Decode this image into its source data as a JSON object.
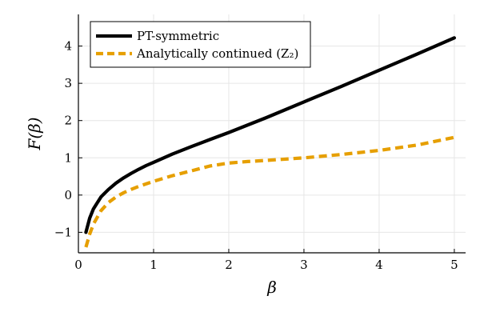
{
  "chart_data": {
    "type": "line",
    "xlabel": "β",
    "ylabel": "F(β)",
    "xlim": [
      0,
      5.15
    ],
    "ylim": [
      -1.55,
      4.85
    ],
    "xticks": [
      0,
      1,
      2,
      3,
      4,
      5
    ],
    "yticks": [
      -1,
      0,
      1,
      2,
      3,
      4
    ],
    "xtick_labels": [
      "0",
      "1",
      "2",
      "3",
      "4",
      "5"
    ],
    "ytick_labels": [
      "−1",
      "0",
      "1",
      "2",
      "3",
      "4"
    ],
    "grid": true,
    "legend_position": "top-left",
    "series": [
      {
        "name": "PT-symmetric",
        "color": "#000000",
        "style": "solid",
        "x": [
          0.1,
          0.15,
          0.2,
          0.3,
          0.4,
          0.5,
          0.6,
          0.7,
          0.8,
          0.9,
          1.0,
          1.25,
          1.5,
          1.75,
          2.0,
          2.5,
          3.0,
          3.5,
          4.0,
          4.5,
          5.0
        ],
        "y": [
          -1.0,
          -0.62,
          -0.37,
          -0.05,
          0.15,
          0.32,
          0.46,
          0.58,
          0.69,
          0.79,
          0.88,
          1.1,
          1.3,
          1.49,
          1.68,
          2.08,
          2.5,
          2.92,
          3.35,
          3.78,
          4.22
        ]
      },
      {
        "name": "Analytically continued (Z₂)",
        "color": "#e69f00",
        "style": "dashed",
        "x": [
          0.1,
          0.15,
          0.2,
          0.3,
          0.4,
          0.5,
          0.6,
          0.7,
          0.8,
          1.0,
          1.25,
          1.5,
          1.75,
          2.0,
          2.25,
          2.5,
          3.0,
          3.5,
          4.0,
          4.5,
          5.0
        ],
        "y": [
          -1.4,
          -1.05,
          -0.78,
          -0.42,
          -0.2,
          -0.05,
          0.06,
          0.15,
          0.23,
          0.37,
          0.52,
          0.65,
          0.78,
          0.86,
          0.9,
          0.93,
          1.0,
          1.09,
          1.2,
          1.34,
          1.55
        ]
      }
    ],
    "legend_entries": [
      "PT-symmetric",
      "Analytically continued (Z₂)"
    ]
  }
}
